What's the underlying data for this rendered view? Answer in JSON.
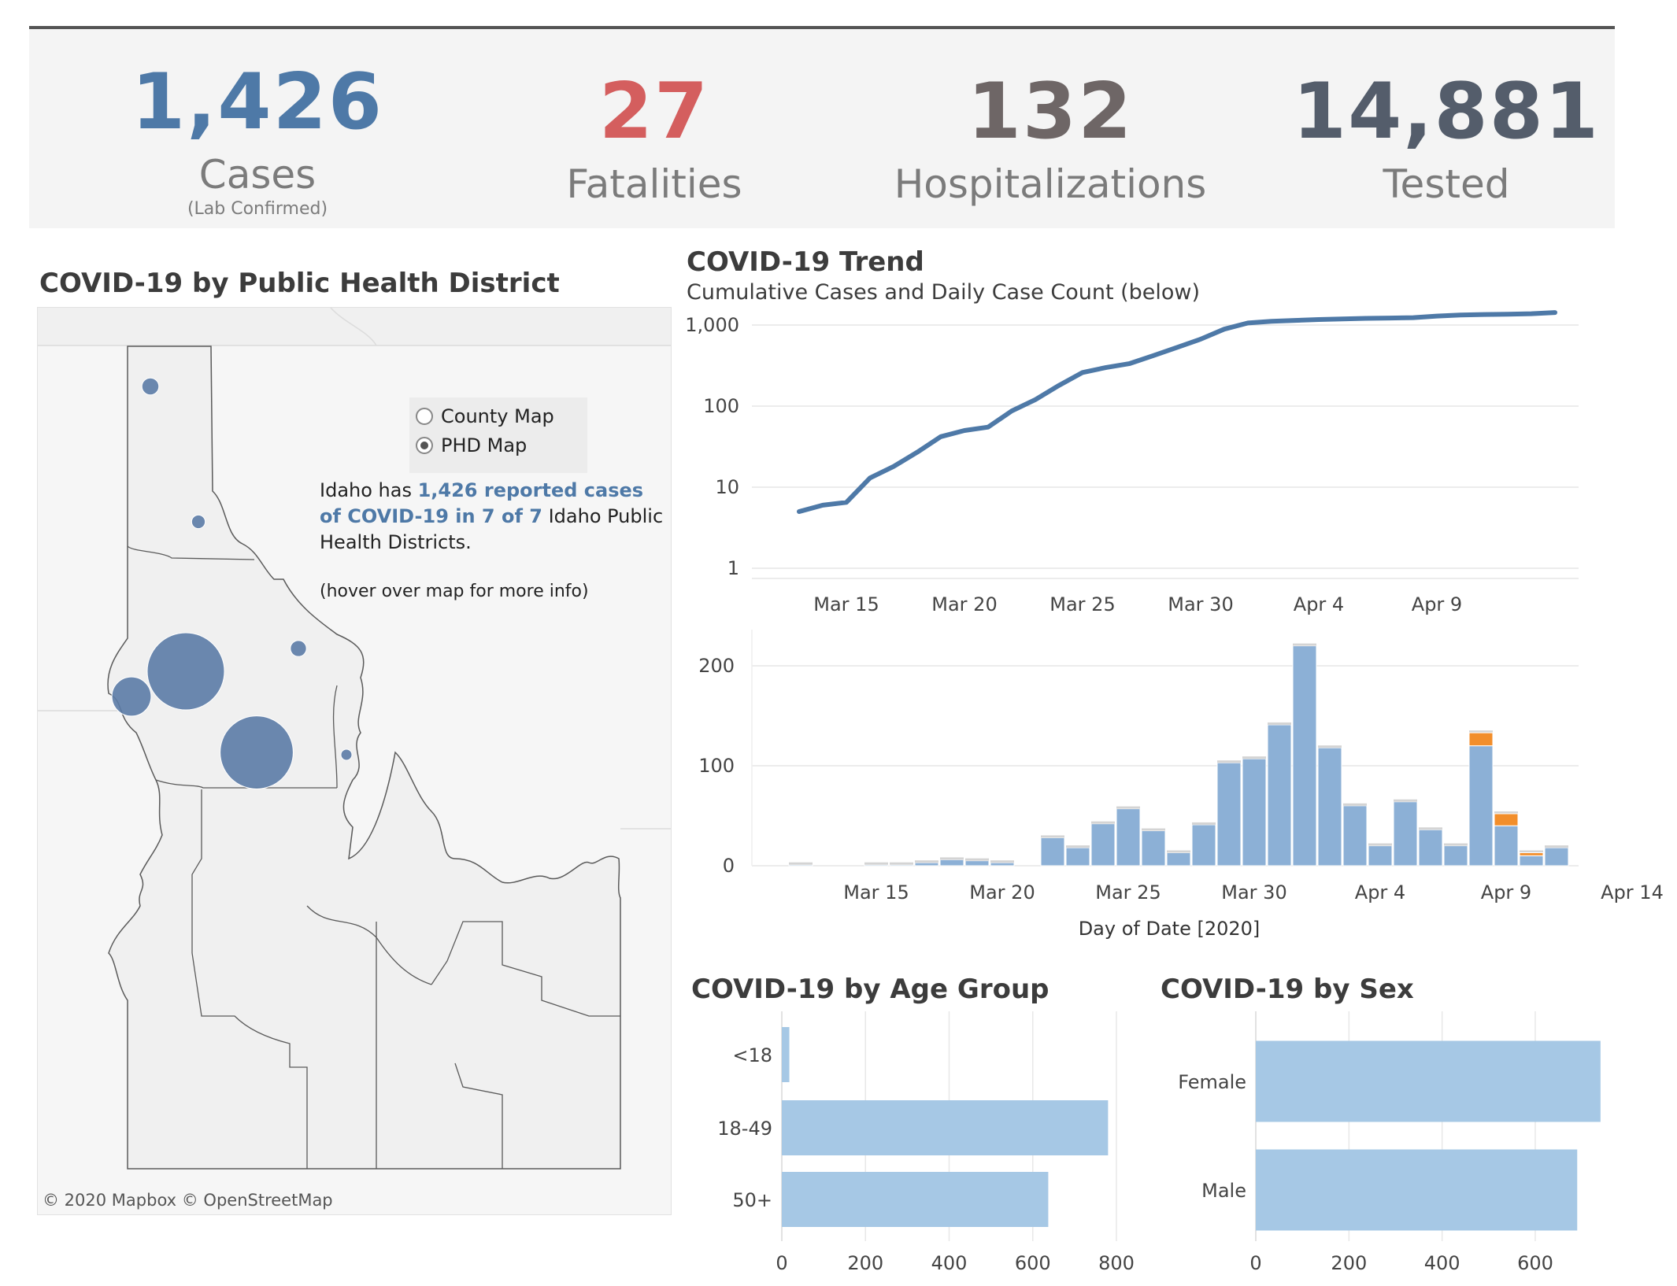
{
  "kpis": {
    "cases": {
      "value": "1,426",
      "label": "Cases",
      "sub": "(Lab Confirmed)",
      "color": "#4e79a7"
    },
    "fatalities": {
      "value": "27",
      "label": "Fatalities",
      "color": "#d45e5e"
    },
    "hospitalizations": {
      "value": "132",
      "label": "Hospitalizations",
      "color": "#6e6666"
    },
    "tested": {
      "value": "14,881",
      "label": "Tested",
      "color": "#545d6b"
    }
  },
  "map": {
    "title": "COVID-19 by Public Health District",
    "toggle": {
      "options": [
        "County Map",
        "PHD Map"
      ],
      "selected": "PHD Map"
    },
    "note": {
      "pre": "Idaho has ",
      "highlight": "1,426 reported cases of COVID-19 in 7 of 7",
      "post": " Idaho Public Health Districts."
    },
    "hint": "(hover over map for more info)",
    "attribution": "© 2020 Mapbox  © OpenStreetMap",
    "bubble_color": "#5b7ba6",
    "districts": [
      {
        "cases": 28
      },
      {
        "cases": 18
      },
      {
        "cases": 580
      },
      {
        "cases": 150
      },
      {
        "cases": 520
      },
      {
        "cases": 25
      },
      {
        "cases": 10
      }
    ]
  },
  "trend": {
    "title": "COVID-19 Trend",
    "subtitle": "Cumulative Cases and Daily Case Count (below)"
  },
  "chart_data": [
    {
      "type": "line",
      "title": "COVID-19 Trend",
      "subtitle": "Cumulative Cases and Daily Case Count (below)",
      "y_scale": "log",
      "ylim": [
        1,
        1426
      ],
      "y_ticks": [
        "1",
        "10",
        "100",
        "1,000"
      ],
      "x_tick_labels": [
        "Mar 15",
        "Mar 20",
        "Mar 25",
        "Mar 30",
        "Apr 4",
        "Apr 9"
      ],
      "x_tick_dates": [
        "2020-03-15",
        "2020-03-20",
        "2020-03-25",
        "2020-03-30",
        "2020-04-04",
        "2020-04-09"
      ],
      "grid": true,
      "color": "#4e79a7",
      "series": [
        {
          "x": [
            "2020-03-13",
            "2020-03-14",
            "2020-03-15",
            "2020-03-16",
            "2020-03-17",
            "2020-03-18",
            "2020-03-19",
            "2020-03-20",
            "2020-03-21",
            "2020-03-22",
            "2020-03-23",
            "2020-03-24",
            "2020-03-25",
            "2020-03-26",
            "2020-03-27",
            "2020-03-28",
            "2020-03-29",
            "2020-03-30",
            "2020-03-31",
            "2020-04-01",
            "2020-04-02",
            "2020-04-03",
            "2020-04-04",
            "2020-04-05",
            "2020-04-06",
            "2020-04-07",
            "2020-04-08",
            "2020-04-09",
            "2020-04-10",
            "2020-04-11",
            "2020-04-12",
            "2020-04-13",
            "2020-04-14"
          ],
          "values": [
            5,
            6,
            6.5,
            13,
            18,
            27,
            42,
            50,
            55,
            87,
            120,
            180,
            260,
            300,
            335,
            420,
            530,
            670,
            890,
            1060,
            1110,
            1140,
            1170,
            1190,
            1210,
            1220,
            1235,
            1290,
            1330,
            1350,
            1360,
            1380,
            1426
          ]
        }
      ]
    },
    {
      "type": "bar",
      "stacked": true,
      "xlabel": "Day of Date [2020]",
      "ylim": [
        0,
        230
      ],
      "y_ticks": [
        0,
        100,
        200
      ],
      "x_tick_labels": [
        "Mar 15",
        "Mar 20",
        "Mar 25",
        "Mar 30",
        "Apr 4",
        "Apr 9",
        "Apr 14"
      ],
      "x_tick_dates": [
        "2020-03-15",
        "2020-03-20",
        "2020-03-25",
        "2020-03-30",
        "2020-04-04",
        "2020-04-09",
        "2020-04-14"
      ],
      "grid": true,
      "categories": [
        "2020-03-11",
        "2020-03-12",
        "2020-03-13",
        "2020-03-14",
        "2020-03-15",
        "2020-03-16",
        "2020-03-17",
        "2020-03-18",
        "2020-03-19",
        "2020-03-20",
        "2020-03-21",
        "2020-03-22",
        "2020-03-23",
        "2020-03-24",
        "2020-03-25",
        "2020-03-26",
        "2020-03-27",
        "2020-03-28",
        "2020-03-29",
        "2020-03-30",
        "2020-03-31",
        "2020-04-01",
        "2020-04-02",
        "2020-04-03",
        "2020-04-04",
        "2020-04-05",
        "2020-04-06",
        "2020-04-07",
        "2020-04-08",
        "2020-04-09",
        "2020-04-10",
        "2020-04-11",
        "2020-04-12"
      ],
      "series": [
        {
          "color": "#8cb0d6",
          "values": [
            0,
            1,
            0,
            0,
            1,
            1,
            3,
            6,
            5,
            3,
            0,
            28,
            18,
            42,
            57,
            35,
            13,
            41,
            103,
            107,
            141,
            220,
            118,
            60,
            20,
            64,
            36,
            20,
            120,
            40,
            10,
            18,
            0
          ]
        },
        {
          "color": "#f28e2b",
          "values": [
            0,
            0,
            0,
            0,
            0,
            0,
            0,
            0,
            0,
            0,
            0,
            0,
            0,
            0,
            0,
            0,
            0,
            0,
            0,
            0,
            0,
            0,
            0,
            0,
            0,
            0,
            0,
            0,
            13,
            12,
            3,
            0,
            0
          ]
        }
      ]
    },
    {
      "type": "bar",
      "orientation": "horizontal",
      "title": "COVID-19 by Age Group",
      "categories": [
        "<18",
        "18-49",
        "50+"
      ],
      "values": [
        18,
        780,
        637
      ],
      "xlim": [
        0,
        840
      ],
      "x_ticks": [
        0,
        200,
        400,
        600,
        800
      ],
      "grid": true,
      "color": "#a6c8e5"
    },
    {
      "type": "bar",
      "orientation": "horizontal",
      "title": "COVID-19 by Sex",
      "categories": [
        "Female",
        "Male"
      ],
      "values": [
        740,
        690
      ],
      "xlim": [
        0,
        760
      ],
      "x_ticks": [
        0,
        200,
        400,
        600
      ],
      "grid": true,
      "color": "#a6c8e5"
    }
  ]
}
